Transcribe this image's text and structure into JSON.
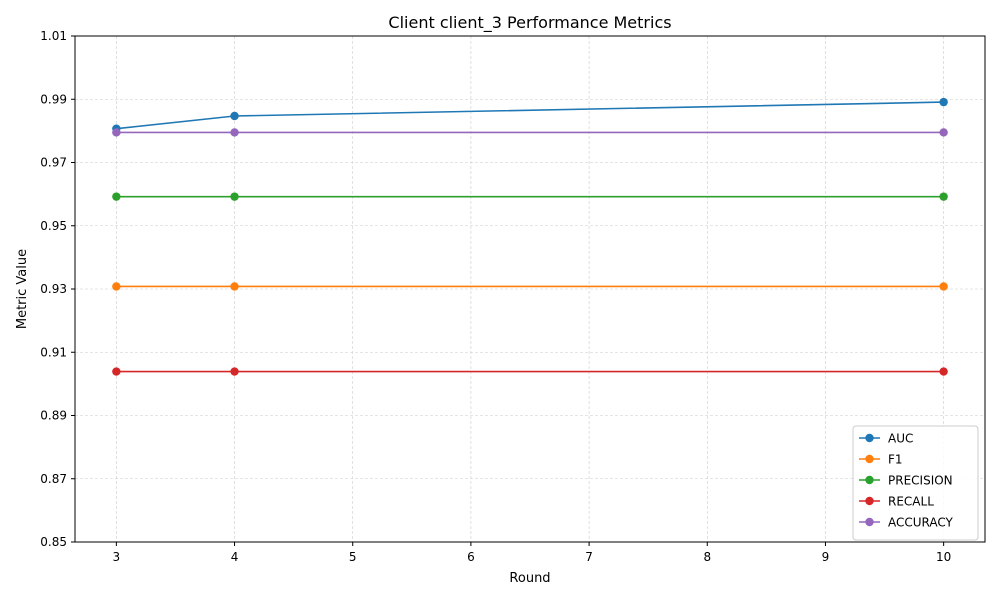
{
  "chart_data": {
    "type": "line",
    "title": "Client client_3 Performance Metrics",
    "xlabel": "Round",
    "ylabel": "Metric Value",
    "x": [
      3,
      4,
      10
    ],
    "xlim": [
      2.65,
      10.35
    ],
    "ylim": [
      0.85,
      1.01
    ],
    "x_ticks": [
      3,
      4,
      5,
      6,
      7,
      8,
      9,
      10
    ],
    "y_ticks": [
      0.85,
      0.87,
      0.89,
      0.91,
      0.93,
      0.95,
      0.97,
      0.99,
      1.01
    ],
    "x_tick_labels": [
      "3",
      "4",
      "5",
      "6",
      "7",
      "8",
      "9",
      "10"
    ],
    "y_tick_labels": [
      "0.85",
      "0.87",
      "0.89",
      "0.91",
      "0.93",
      "0.95",
      "0.97",
      "0.99",
      "1.01"
    ],
    "grid": true,
    "legend_position": "bottom-right",
    "series": [
      {
        "name": "AUC",
        "color": "#1f77b4",
        "values": [
          0.9807,
          0.9847,
          0.9891
        ]
      },
      {
        "name": "F1",
        "color": "#ff7f0e",
        "values": [
          0.9308,
          0.9308,
          0.9308
        ]
      },
      {
        "name": "PRECISION",
        "color": "#2ca02c",
        "values": [
          0.9592,
          0.9592,
          0.9592
        ]
      },
      {
        "name": "RECALL",
        "color": "#d62728",
        "values": [
          0.9039,
          0.9039,
          0.9039
        ]
      },
      {
        "name": "ACCURACY",
        "color": "#9467bd",
        "values": [
          0.9795,
          0.9795,
          0.9795
        ]
      }
    ]
  }
}
